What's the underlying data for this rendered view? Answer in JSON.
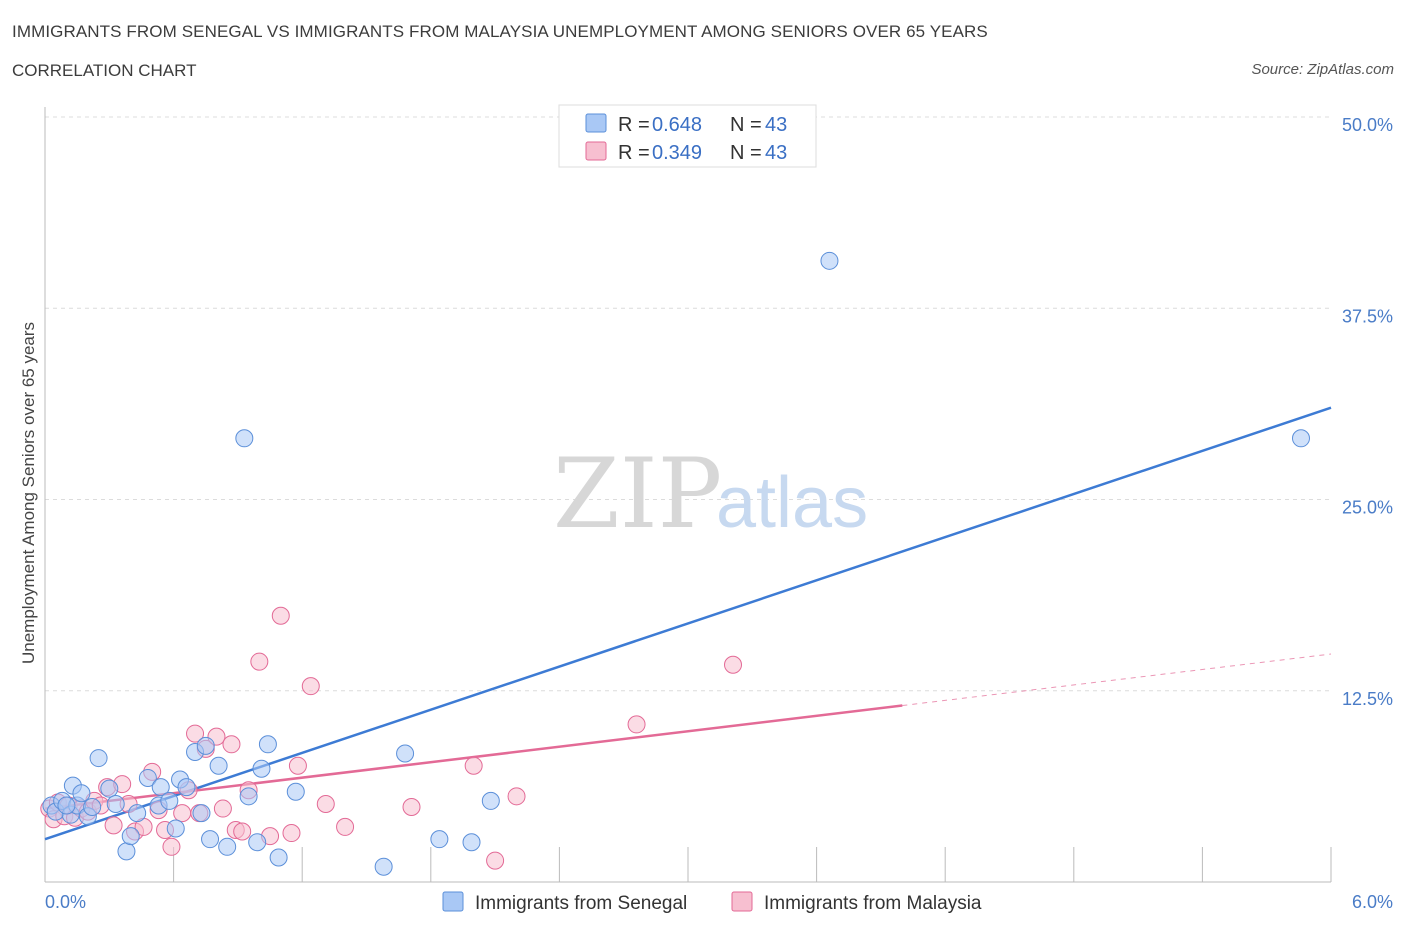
{
  "header": {
    "title": "IMMIGRANTS FROM SENEGAL VS IMMIGRANTS FROM MALAYSIA UNEMPLOYMENT AMONG SENIORS OVER 65 YEARS",
    "subtitle": "CORRELATION CHART",
    "source": "Source: ZipAtlas.com"
  },
  "watermark": {
    "zip": "ZIP",
    "atlas": "atlas"
  },
  "legend": {
    "items": [
      {
        "r_label": "R =",
        "r_value": "0.648",
        "n_label": "N =",
        "n_value": "43",
        "color": "#a9c8f5"
      },
      {
        "r_label": "R =",
        "r_value": "0.349",
        "n_label": "N =",
        "n_value": "43",
        "color": "#f7bfd0"
      }
    ]
  },
  "chart_data": {
    "type": "scatter",
    "ylabel": "Unemployment Among Seniors over 65 years",
    "xlim": [
      0,
      6
    ],
    "ylim": [
      0,
      50
    ],
    "x_tick_labels": [
      {
        "value": 0,
        "label": "0.0%"
      },
      {
        "value": 6,
        "label": "6.0%"
      }
    ],
    "y_tick_labels": [
      {
        "value": 12.5,
        "label": "12.5%"
      },
      {
        "value": 25,
        "label": "25.0%"
      },
      {
        "value": 37.5,
        "label": "37.5%"
      },
      {
        "value": 50,
        "label": "50.0%"
      }
    ],
    "grid": true,
    "legend_position": "bottom",
    "series": [
      {
        "name": "Immigrants from Senegal",
        "color": "#5b8fd9",
        "fill": "#a9c8f5",
        "trend": {
          "x": [
            0,
            6
          ],
          "y": [
            2.8,
            31.0
          ],
          "dashed_from": null
        },
        "points": [
          [
            0.03,
            5.0
          ],
          [
            0.05,
            4.6
          ],
          [
            0.08,
            5.3
          ],
          [
            0.12,
            4.4
          ],
          [
            0.15,
            5.0
          ],
          [
            0.2,
            4.3
          ],
          [
            0.13,
            6.3
          ],
          [
            0.17,
            5.8
          ],
          [
            0.25,
            8.1
          ],
          [
            0.3,
            6.1
          ],
          [
            0.33,
            5.1
          ],
          [
            0.38,
            2.0
          ],
          [
            0.4,
            3.0
          ],
          [
            0.43,
            4.5
          ],
          [
            0.48,
            6.8
          ],
          [
            0.53,
            5.0
          ],
          [
            0.54,
            6.2
          ],
          [
            0.58,
            5.3
          ],
          [
            0.61,
            3.5
          ],
          [
            0.63,
            6.7
          ],
          [
            0.66,
            6.2
          ],
          [
            0.7,
            8.5
          ],
          [
            0.73,
            4.5
          ],
          [
            0.75,
            8.9
          ],
          [
            0.77,
            2.8
          ],
          [
            0.81,
            7.6
          ],
          [
            0.85,
            2.3
          ],
          [
            0.93,
            29.0
          ],
          [
            0.95,
            5.6
          ],
          [
            0.99,
            2.6
          ],
          [
            1.01,
            7.4
          ],
          [
            1.04,
            9.0
          ],
          [
            1.09,
            1.6
          ],
          [
            1.17,
            5.9
          ],
          [
            1.58,
            1.0
          ],
          [
            1.68,
            8.4
          ],
          [
            1.84,
            2.8
          ],
          [
            1.99,
            2.6
          ],
          [
            2.08,
            5.3
          ],
          [
            3.66,
            40.6
          ],
          [
            5.86,
            29.0
          ],
          [
            0.1,
            5.0
          ],
          [
            0.22,
            4.9
          ]
        ]
      },
      {
        "name": "Immigrants from Malaysia",
        "color": "#e36a96",
        "fill": "#f7bfd0",
        "trend": {
          "x": [
            0,
            6
          ],
          "y": [
            4.8,
            14.9
          ],
          "dashed_from": 4.0
        },
        "points": [
          [
            0.02,
            4.8
          ],
          [
            0.04,
            4.1
          ],
          [
            0.06,
            5.2
          ],
          [
            0.09,
            4.3
          ],
          [
            0.11,
            5.0
          ],
          [
            0.14,
            4.2
          ],
          [
            0.17,
            4.8
          ],
          [
            0.2,
            4.6
          ],
          [
            0.23,
            5.3
          ],
          [
            0.26,
            5.0
          ],
          [
            0.29,
            6.2
          ],
          [
            0.32,
            3.7
          ],
          [
            0.36,
            6.4
          ],
          [
            0.39,
            5.1
          ],
          [
            0.42,
            3.3
          ],
          [
            0.46,
            3.6
          ],
          [
            0.5,
            7.2
          ],
          [
            0.53,
            4.7
          ],
          [
            0.56,
            3.4
          ],
          [
            0.59,
            2.3
          ],
          [
            0.64,
            4.5
          ],
          [
            0.67,
            6.0
          ],
          [
            0.7,
            9.7
          ],
          [
            0.72,
            4.5
          ],
          [
            0.75,
            8.7
          ],
          [
            0.8,
            9.5
          ],
          [
            0.83,
            4.8
          ],
          [
            0.87,
            9.0
          ],
          [
            0.89,
            3.4
          ],
          [
            0.92,
            3.3
          ],
          [
            0.95,
            6.0
          ],
          [
            1.0,
            14.4
          ],
          [
            1.05,
            3.0
          ],
          [
            1.1,
            17.4
          ],
          [
            1.15,
            3.2
          ],
          [
            1.18,
            7.6
          ],
          [
            1.24,
            12.8
          ],
          [
            1.31,
            5.1
          ],
          [
            1.4,
            3.6
          ],
          [
            1.71,
            4.9
          ],
          [
            2.0,
            7.6
          ],
          [
            2.1,
            1.4
          ],
          [
            2.2,
            5.6
          ]
        ]
      }
    ],
    "extra_malaysia_points": [
      [
        2.76,
        10.3
      ],
      [
        3.21,
        14.2
      ]
    ]
  }
}
